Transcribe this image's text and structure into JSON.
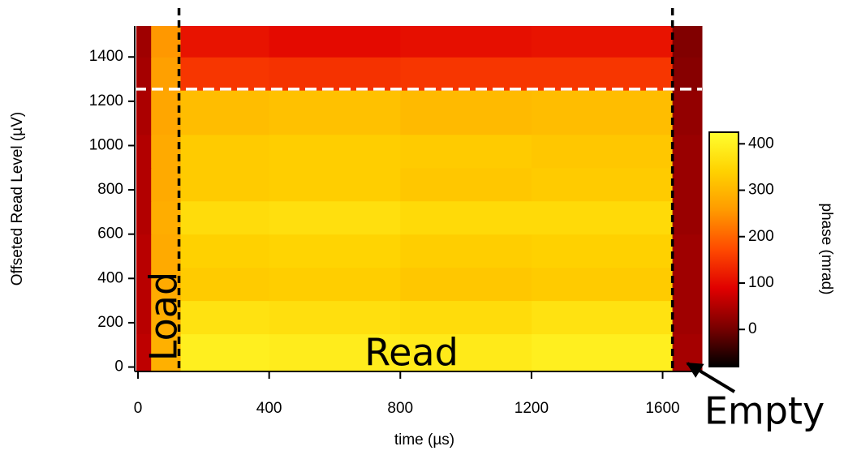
{
  "chart_data": {
    "type": "heatmap",
    "xlabel": "time (µs)",
    "ylabel": "Offseted Read Level (µV)",
    "colorbar_label": "phase (mrad)",
    "x_edges": [
      -5,
      40,
      130,
      400,
      800,
      1200,
      1630,
      1720
    ],
    "y_edges": [
      -20,
      150,
      300,
      450,
      600,
      750,
      900,
      1050,
      1250,
      1400,
      1540
    ],
    "z": [
      [
        60,
        290,
        395,
        390,
        385,
        395,
        40
      ],
      [
        55,
        285,
        370,
        365,
        360,
        370,
        35
      ],
      [
        55,
        280,
        330,
        335,
        325,
        330,
        35
      ],
      [
        55,
        280,
        340,
        345,
        335,
        340,
        35
      ],
      [
        50,
        285,
        360,
        365,
        355,
        355,
        30
      ],
      [
        50,
        280,
        330,
        335,
        325,
        330,
        30
      ],
      [
        50,
        280,
        330,
        335,
        330,
        325,
        30
      ],
      [
        45,
        275,
        310,
        315,
        305,
        310,
        25
      ],
      [
        40,
        265,
        150,
        145,
        150,
        150,
        15
      ],
      [
        35,
        255,
        110,
        100,
        105,
        110,
        10
      ]
    ],
    "xlim": [
      -10,
      1720
    ],
    "ylim": [
      -20,
      1540
    ],
    "xticks": [
      0,
      400,
      800,
      1200,
      1600
    ],
    "yticks": [
      0,
      200,
      400,
      600,
      800,
      1000,
      1200,
      1400
    ],
    "zlim": [
      -80,
      425
    ],
    "zticks": [
      0,
      100,
      200,
      300,
      400
    ],
    "colormap": [
      "#000000",
      "#7a0000",
      "#e00000",
      "#ff4a00",
      "#ff9a00",
      "#ffd200",
      "#ffff30"
    ],
    "vlines": [
      125,
      1630
    ],
    "vline_color": "#000000",
    "hlines": [
      1255
    ],
    "hline_color": "#ffffff",
    "annotations": [
      "Load",
      "Read",
      "Empty"
    ]
  }
}
